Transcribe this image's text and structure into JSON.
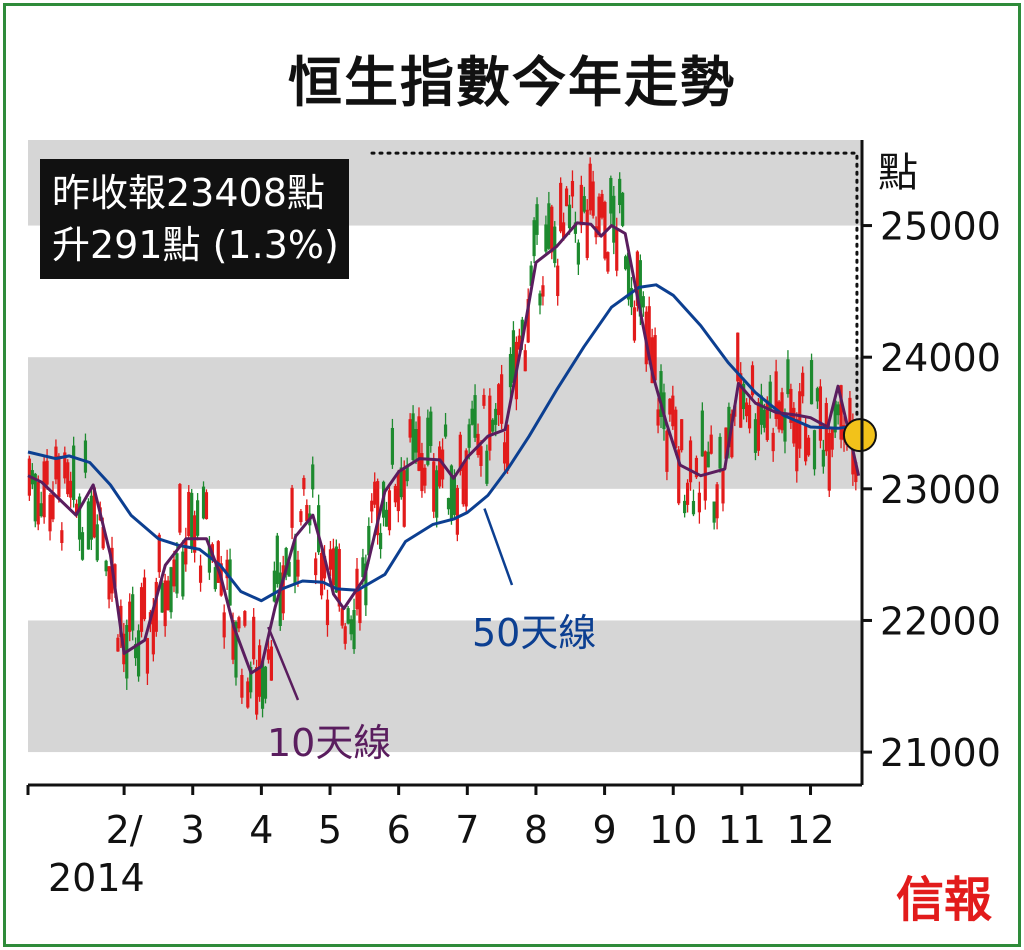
{
  "title": "恒生指數今年走勢",
  "unit_label": "點",
  "callout": {
    "line1": "昨收報23408點",
    "line2": "升291點 (1.3%)"
  },
  "brand": "信報",
  "colors": {
    "frame": "#2e8b3a",
    "band": "#d6d6d6",
    "ma50": "#0c3f91",
    "ma10": "#5a1d5e",
    "up": "#1d8a2f",
    "down": "#e21b1b",
    "marker": "#f2c21a",
    "brand": "#e21b1b"
  },
  "chart_data": {
    "type": "line",
    "title": "恒生指數今年走勢",
    "ylabel": "點",
    "ylim": [
      20750,
      25650
    ],
    "yticks": [
      21000,
      22000,
      23000,
      24000,
      25000
    ],
    "ytick_labels": [
      "21000",
      "22000",
      "23000",
      "24000",
      "25000"
    ],
    "xlim": [
      0.6,
      12.75
    ],
    "x_ticks": [
      2,
      3,
      4,
      5,
      6,
      7,
      8,
      9,
      10,
      11,
      12
    ],
    "x_tick_labels": [
      "2/",
      "3",
      "4",
      "5",
      "6",
      "7",
      "8",
      "9",
      "10",
      "11",
      "12"
    ],
    "x_year_label": "2014",
    "grid": "alternating bands",
    "last_close": 23408,
    "series": [
      {
        "name": "50天線",
        "role": "ma50",
        "x": [
          0.6,
          1.0,
          1.2,
          1.5,
          1.8,
          2.1,
          2.5,
          2.8,
          3.1,
          3.4,
          3.7,
          4.0,
          4.3,
          4.6,
          4.9,
          5.1,
          5.4,
          5.8,
          6.1,
          6.5,
          6.8,
          7.0,
          7.3,
          7.6,
          7.9,
          8.3,
          8.7,
          9.1,
          9.5,
          9.75,
          10.0,
          10.4,
          10.8,
          11.2,
          11.6,
          12.0,
          12.4,
          12.7
        ],
        "values": [
          23280,
          23230,
          23250,
          23200,
          23030,
          22800,
          22620,
          22570,
          22540,
          22420,
          22220,
          22150,
          22240,
          22300,
          22290,
          22240,
          22230,
          22350,
          22600,
          22730,
          22770,
          22820,
          22950,
          23160,
          23400,
          23750,
          24080,
          24380,
          24530,
          24550,
          24470,
          24240,
          23960,
          23730,
          23560,
          23470,
          23460,
          23480
        ]
      },
      {
        "name": "10天線",
        "role": "ma10",
        "x": [
          0.6,
          0.8,
          1.1,
          1.3,
          1.55,
          1.8,
          2.0,
          2.3,
          2.6,
          2.9,
          3.2,
          3.4,
          3.6,
          3.85,
          4.0,
          4.2,
          4.5,
          4.75,
          4.9,
          5.05,
          5.2,
          5.5,
          5.8,
          6.0,
          6.3,
          6.6,
          6.8,
          7.0,
          7.3,
          7.55,
          7.8,
          8.0,
          8.3,
          8.6,
          8.8,
          8.95,
          9.1,
          9.3,
          9.5,
          9.7,
          9.9,
          10.1,
          10.4,
          10.75,
          10.95,
          11.2,
          11.5,
          11.8,
          12.0,
          12.25,
          12.4,
          12.55,
          12.7
        ],
        "values": [
          23100,
          23050,
          22900,
          22800,
          23030,
          22500,
          21750,
          21850,
          22420,
          22620,
          22620,
          22350,
          21950,
          21600,
          21650,
          22100,
          22640,
          22800,
          22520,
          22200,
          22090,
          22320,
          22980,
          23130,
          23230,
          23220,
          23080,
          23240,
          23400,
          23450,
          24120,
          24720,
          24840,
          25020,
          25010,
          24920,
          25000,
          24940,
          24400,
          23870,
          23500,
          23180,
          23100,
          23150,
          23800,
          23650,
          23580,
          23560,
          23540,
          23470,
          23780,
          23450,
          23100
        ]
      }
    ]
  }
}
